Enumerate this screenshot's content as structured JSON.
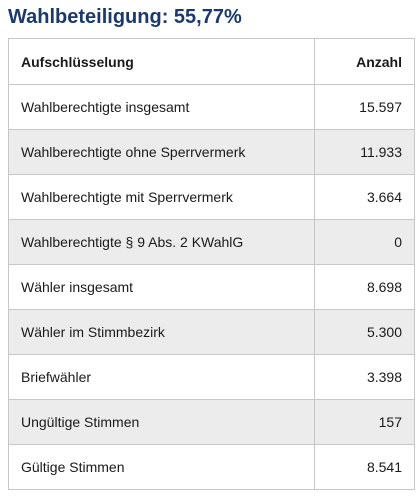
{
  "title": "Wahlbeteiligung: 55,77%",
  "table": {
    "headers": [
      "Aufschlüsselung",
      "Anzahl"
    ],
    "rows": [
      {
        "label": "Wahlberechtigte insgesamt",
        "value": "15.597"
      },
      {
        "label": "Wahlberechtigte ohne Sperrvermerk",
        "value": "11.933"
      },
      {
        "label": "Wahlberechtigte mit Sperrvermerk",
        "value": "3.664"
      },
      {
        "label": "Wahlberechtigte § 9 Abs. 2 KWahlG",
        "value": "0"
      },
      {
        "label": "Wähler insgesamt",
        "value": "8.698"
      },
      {
        "label": "Wähler im Stimmbezirk",
        "value": "5.300"
      },
      {
        "label": "Briefwähler",
        "value": "3.398"
      },
      {
        "label": "Ungültige Stimmen",
        "value": "157"
      },
      {
        "label": "Gültige Stimmen",
        "value": "8.541"
      }
    ]
  }
}
